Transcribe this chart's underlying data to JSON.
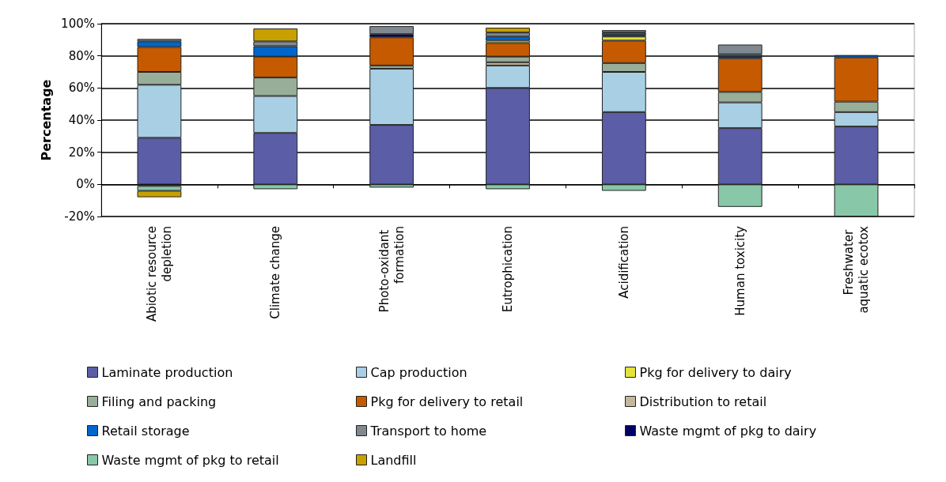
{
  "chart_data": {
    "type": "bar",
    "stacked": true,
    "ylabel": "Percentage",
    "categories": [
      "Abiotic resource depletion",
      "Climate change",
      "Photo-oxidant formation",
      "Eutrophication",
      "Acidification",
      "Human toxicity",
      "Freshwater aquatic ecotox"
    ],
    "series": [
      {
        "name": "Laminate production",
        "color": "#5b5ea6",
        "values": [
          29,
          32,
          37,
          60,
          45,
          35,
          36
        ]
      },
      {
        "name": "Cap production",
        "color": "#a8cfe3",
        "values": [
          33,
          23,
          35,
          14,
          25,
          16,
          9
        ]
      },
      {
        "name": "Distribution to retail",
        "color": "#c5b79a",
        "values": [
          null,
          null,
          null,
          2,
          null,
          null,
          null
        ]
      },
      {
        "name": "Filing and packing",
        "color": "#99ae99",
        "values": [
          8,
          11.5,
          2,
          3.5,
          5.5,
          6.5,
          6.5
        ]
      },
      {
        "name": "Pkg for delivery to retail",
        "color": "#c55a00",
        "values": [
          15.5,
          13,
          17.5,
          8.5,
          14,
          21,
          27.5
        ]
      },
      {
        "name": "Pkg for delivery to dairy",
        "color": "#e3e33c",
        "values": [
          null,
          null,
          null,
          1.5,
          2.5,
          null,
          null
        ]
      },
      {
        "name": "Waste mgmt of pkg to dairy",
        "color": "#000066",
        "values": [
          -1,
          null,
          2,
          null,
          1,
          1,
          null
        ]
      },
      {
        "name": "Retail storage",
        "color": "#0066cc",
        "values": [
          3.5,
          6.5,
          null,
          2.5,
          1.5,
          1.5,
          1.5
        ]
      },
      {
        "name": "Transport to home",
        "color": "#808890",
        "values": [
          1.5,
          3,
          5,
          2.5,
          1.5,
          6,
          null
        ]
      },
      {
        "name": "Waste mgmt of pkg to retail",
        "color": "#88c8a8",
        "values": [
          -3,
          -3,
          -2,
          -3,
          -4,
          -14,
          -20
        ]
      },
      {
        "name": "Landfill",
        "color": "#c8a000",
        "values": [
          -4,
          8,
          null,
          3,
          null,
          null,
          null
        ]
      }
    ],
    "ylim": [
      -20,
      100
    ],
    "yticks": [
      {
        "value": -20,
        "label": "-20%"
      },
      {
        "value": 0,
        "label": "0%"
      },
      {
        "value": 20,
        "label": "20%"
      },
      {
        "value": 40,
        "label": "40%"
      },
      {
        "value": 60,
        "label": "60%"
      },
      {
        "value": 80,
        "label": "80%"
      },
      {
        "value": 100,
        "label": "100%"
      }
    ],
    "grid": "y",
    "legend": "bottom"
  }
}
